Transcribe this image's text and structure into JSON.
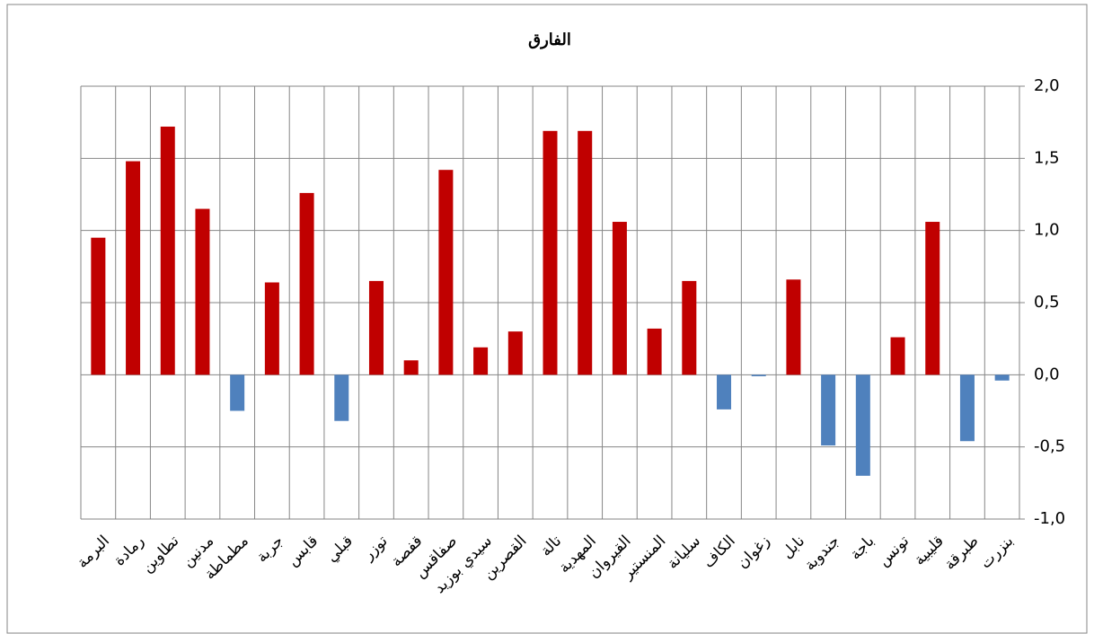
{
  "chart_data": {
    "type": "bar",
    "title": "الفارق",
    "categories": [
      "البرمة",
      "رمادة",
      "تطاوين",
      "مدنين",
      "مطماطة",
      "جربة",
      "قابس",
      "قبلي",
      "توزر",
      "قفصة",
      "صفاقس",
      "سيدي بوزيد",
      "القصرين",
      "تالة",
      "المهدية",
      "القيروان",
      "المنستير",
      "سليانة",
      "الكاف",
      "زغوان",
      "نابل",
      "جندوبة",
      "باجة",
      "تونس",
      "قليبية",
      "طبرقة",
      "بنزرت"
    ],
    "values": [
      0.95,
      1.48,
      1.72,
      1.15,
      -0.25,
      0.64,
      1.26,
      -0.32,
      0.65,
      0.1,
      1.42,
      0.19,
      0.3,
      1.69,
      1.69,
      1.06,
      0.32,
      0.65,
      -0.24,
      -0.01,
      0.66,
      -0.49,
      -0.7,
      0.26,
      1.06,
      -0.46,
      -0.04
    ],
    "color": "#c00000",
    "negative_color": "#4f81bd",
    "ylim": [
      -1,
      2
    ],
    "yticks": [
      {
        "value": -1,
        "label": "-1,0"
      },
      {
        "value": -0.5,
        "label": "-0,5"
      },
      {
        "value": 0,
        "label": "0,0"
      },
      {
        "value": 0.5,
        "label": "0,5"
      },
      {
        "value": 1,
        "label": "1,0"
      },
      {
        "value": 1.5,
        "label": "1,5"
      },
      {
        "value": 2,
        "label": "2,0"
      }
    ],
    "y_axis_side": "right",
    "grid": true
  }
}
